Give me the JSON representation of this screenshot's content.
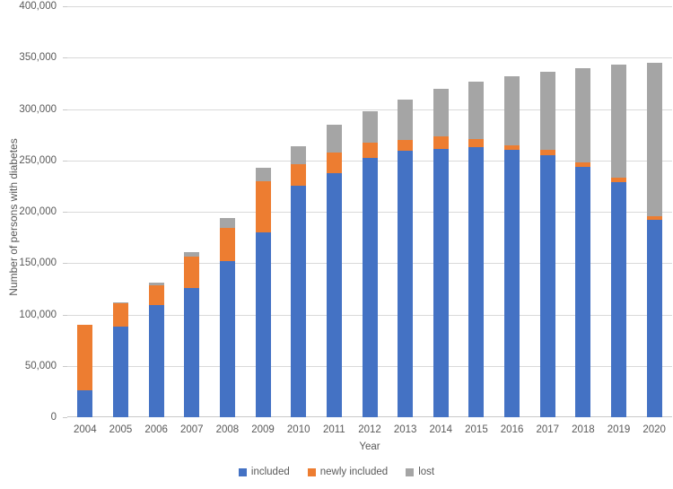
{
  "chart_data": {
    "type": "bar",
    "stacked": true,
    "title": "",
    "xlabel": "Year",
    "ylabel": "Number of persons with diabetes",
    "ylim": [
      0,
      400000
    ],
    "ytick_step": 50000,
    "ytick_labels": [
      "0",
      "50,000",
      "100,000",
      "150,000",
      "200,000",
      "250,000",
      "300,000",
      "350,000",
      "400,000"
    ],
    "grid": true,
    "legend_position": "bottom",
    "categories": [
      "2004",
      "2005",
      "2006",
      "2007",
      "2008",
      "2009",
      "2010",
      "2011",
      "2012",
      "2013",
      "2014",
      "2015",
      "2016",
      "2017",
      "2018",
      "2019",
      "2020"
    ],
    "series": [
      {
        "name": "included",
        "color": "#4472C4",
        "values": [
          26000,
          88000,
          109000,
          126000,
          152000,
          180000,
          225000,
          238000,
          252000,
          259000,
          261000,
          263000,
          260000,
          255000,
          244000,
          229000,
          192000
        ]
      },
      {
        "name": "newly included",
        "color": "#ED7D31",
        "values": [
          64000,
          23000,
          19000,
          30000,
          32000,
          50000,
          21000,
          20000,
          15000,
          11000,
          12000,
          8000,
          5000,
          5000,
          4000,
          4000,
          4000
        ]
      },
      {
        "name": "lost",
        "color": "#A5A5A5",
        "values": [
          0,
          1000,
          3000,
          5000,
          10000,
          13000,
          18000,
          27000,
          31000,
          39000,
          47000,
          56000,
          67000,
          76000,
          92000,
          110000,
          149000
        ]
      }
    ]
  },
  "style": {
    "gridline_color": "#d9d9d9",
    "axis_line_color": "#c9c9c9",
    "text_color": "#595959",
    "background": "#ffffff"
  }
}
